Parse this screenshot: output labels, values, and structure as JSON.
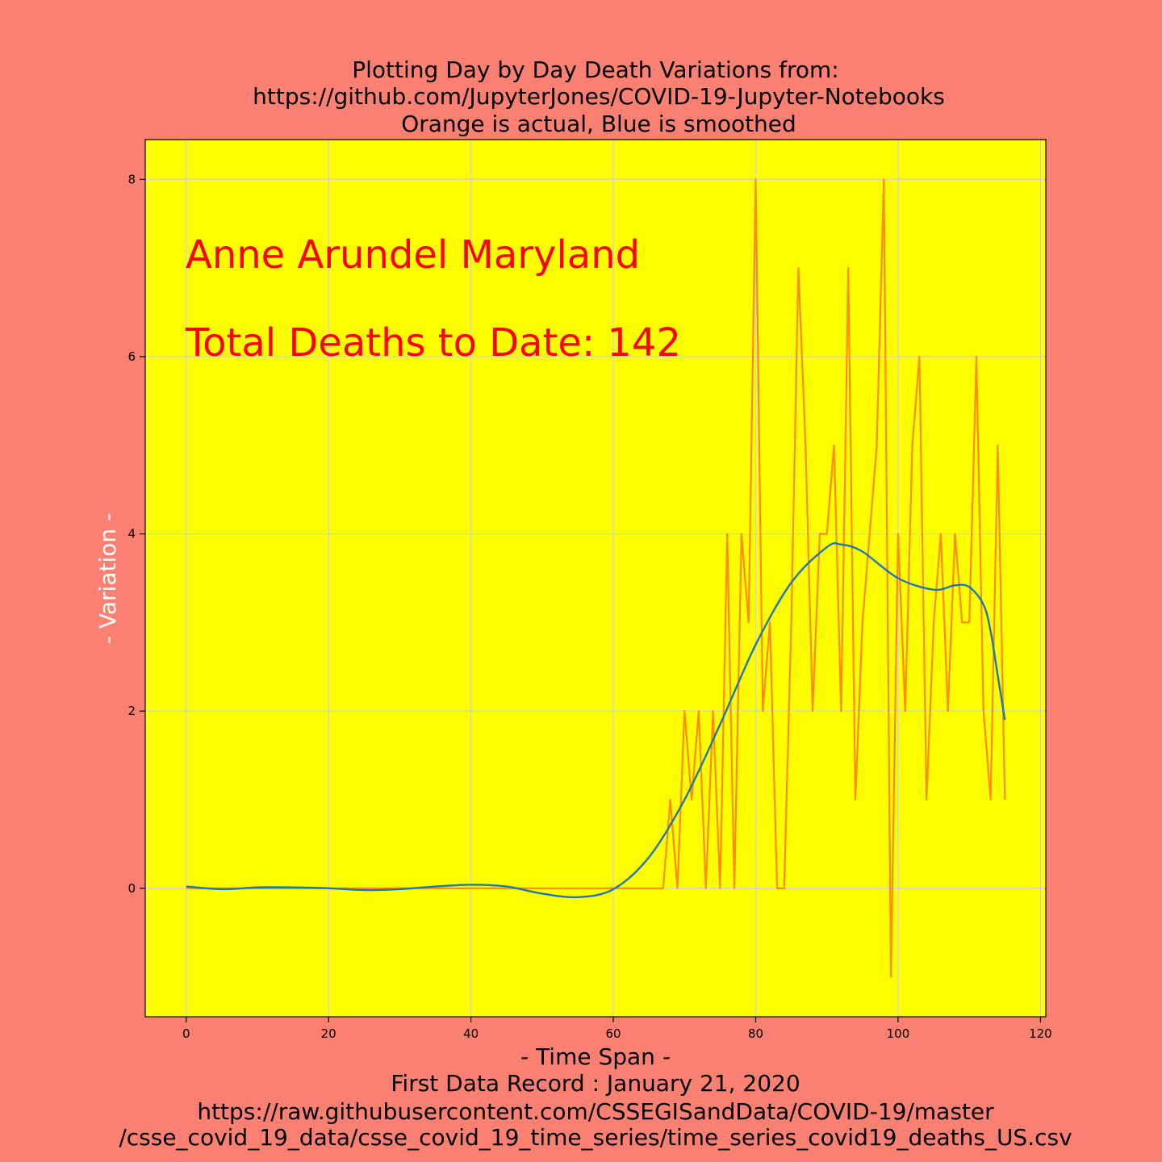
{
  "chart_data": {
    "type": "line",
    "title_lines": [
      "Plotting Day by Day Death Variations from:",
      "https://github.com/JupyterJones/COVID-19-Jupyter-Notebooks",
      "Orange is actual, Blue is smoothed"
    ],
    "xlabel_lines": [
      "- Time Span -",
      "First Data Record : January 21, 2020",
      "https://raw.githubusercontent.com/CSSEGISandData/COVID-19/master",
      "/csse_covid_19_data/csse_covid_19_time_series/time_series_covid19_deaths_US.csv"
    ],
    "ylabel": "- Variation -",
    "annotations": [
      "Anne Arundel Maryland",
      "Total Deaths to Date: 142"
    ],
    "xlim": [
      -5.75,
      120.75
    ],
    "ylim": [
      -1.45,
      8.45
    ],
    "x_ticks": [
      0,
      20,
      40,
      60,
      80,
      100,
      120
    ],
    "y_ticks": [
      0,
      2,
      4,
      6,
      8
    ],
    "grid": true,
    "colors": {
      "figure_background": "#fa8072",
      "plot_background": "#ffff00",
      "actual": "#ff8c00",
      "smoothed": "#1f77b4",
      "annotation": "#ff0000",
      "ylabel": "#ffffff",
      "grid": "#d3d3d3"
    },
    "series": [
      {
        "name": "Orange is actual",
        "x": [
          0,
          1,
          2,
          3,
          4,
          5,
          6,
          7,
          8,
          9,
          10,
          11,
          12,
          13,
          14,
          15,
          16,
          17,
          18,
          19,
          20,
          21,
          22,
          23,
          24,
          25,
          26,
          27,
          28,
          29,
          30,
          31,
          32,
          33,
          34,
          35,
          36,
          37,
          38,
          39,
          40,
          41,
          42,
          43,
          44,
          45,
          46,
          47,
          48,
          49,
          50,
          51,
          52,
          53,
          54,
          55,
          56,
          57,
          58,
          59,
          60,
          61,
          62,
          63,
          64,
          65,
          66,
          67,
          68,
          69,
          70,
          71,
          72,
          73,
          74,
          75,
          76,
          77,
          78,
          79,
          80,
          81,
          82,
          83,
          84,
          85,
          86,
          87,
          88,
          89,
          90,
          91,
          92,
          93,
          94,
          95,
          96,
          97,
          98,
          99,
          100,
          101,
          102,
          103,
          104,
          105,
          106,
          107,
          108,
          109,
          110,
          111,
          112,
          113,
          114,
          115
        ],
        "values": [
          0,
          0,
          0,
          0,
          0,
          0,
          0,
          0,
          0,
          0,
          0,
          0,
          0,
          0,
          0,
          0,
          0,
          0,
          0,
          0,
          0,
          0,
          0,
          0,
          0,
          0,
          0,
          0,
          0,
          0,
          0,
          0,
          0,
          0,
          0,
          0,
          0,
          0,
          0,
          0,
          0,
          0,
          0,
          0,
          0,
          0,
          0,
          0,
          0,
          0,
          0,
          0,
          0,
          0,
          0,
          0,
          0,
          0,
          0,
          0,
          0,
          0,
          0,
          0,
          0,
          0,
          0,
          0,
          1,
          0,
          2,
          1,
          2,
          0,
          2,
          0,
          4,
          0,
          4,
          3,
          8,
          2,
          3,
          0,
          0,
          3,
          7,
          5,
          2,
          4,
          4,
          5,
          2,
          7,
          1,
          3,
          4,
          5,
          8,
          -1,
          4,
          2,
          5,
          6,
          1,
          3,
          4,
          2,
          4,
          3,
          3,
          6,
          2,
          1,
          5,
          1
        ]
      },
      {
        "name": "Blue is smoothed",
        "x": [
          0,
          5,
          10,
          15,
          20,
          25,
          30,
          35,
          40,
          45,
          50,
          55,
          60,
          65,
          70,
          75,
          80,
          85,
          90,
          92,
          95,
          100,
          105,
          108,
          110,
          112,
          113,
          114,
          115
        ],
        "values": [
          0.02,
          -0.01,
          0.01,
          0.01,
          0.0,
          -0.02,
          -0.01,
          0.02,
          0.04,
          0.02,
          -0.06,
          -0.1,
          -0.01,
          0.35,
          1.0,
          1.85,
          2.75,
          3.45,
          3.85,
          3.88,
          3.8,
          3.5,
          3.37,
          3.42,
          3.4,
          3.2,
          2.9,
          2.4,
          1.9
        ]
      }
    ]
  }
}
